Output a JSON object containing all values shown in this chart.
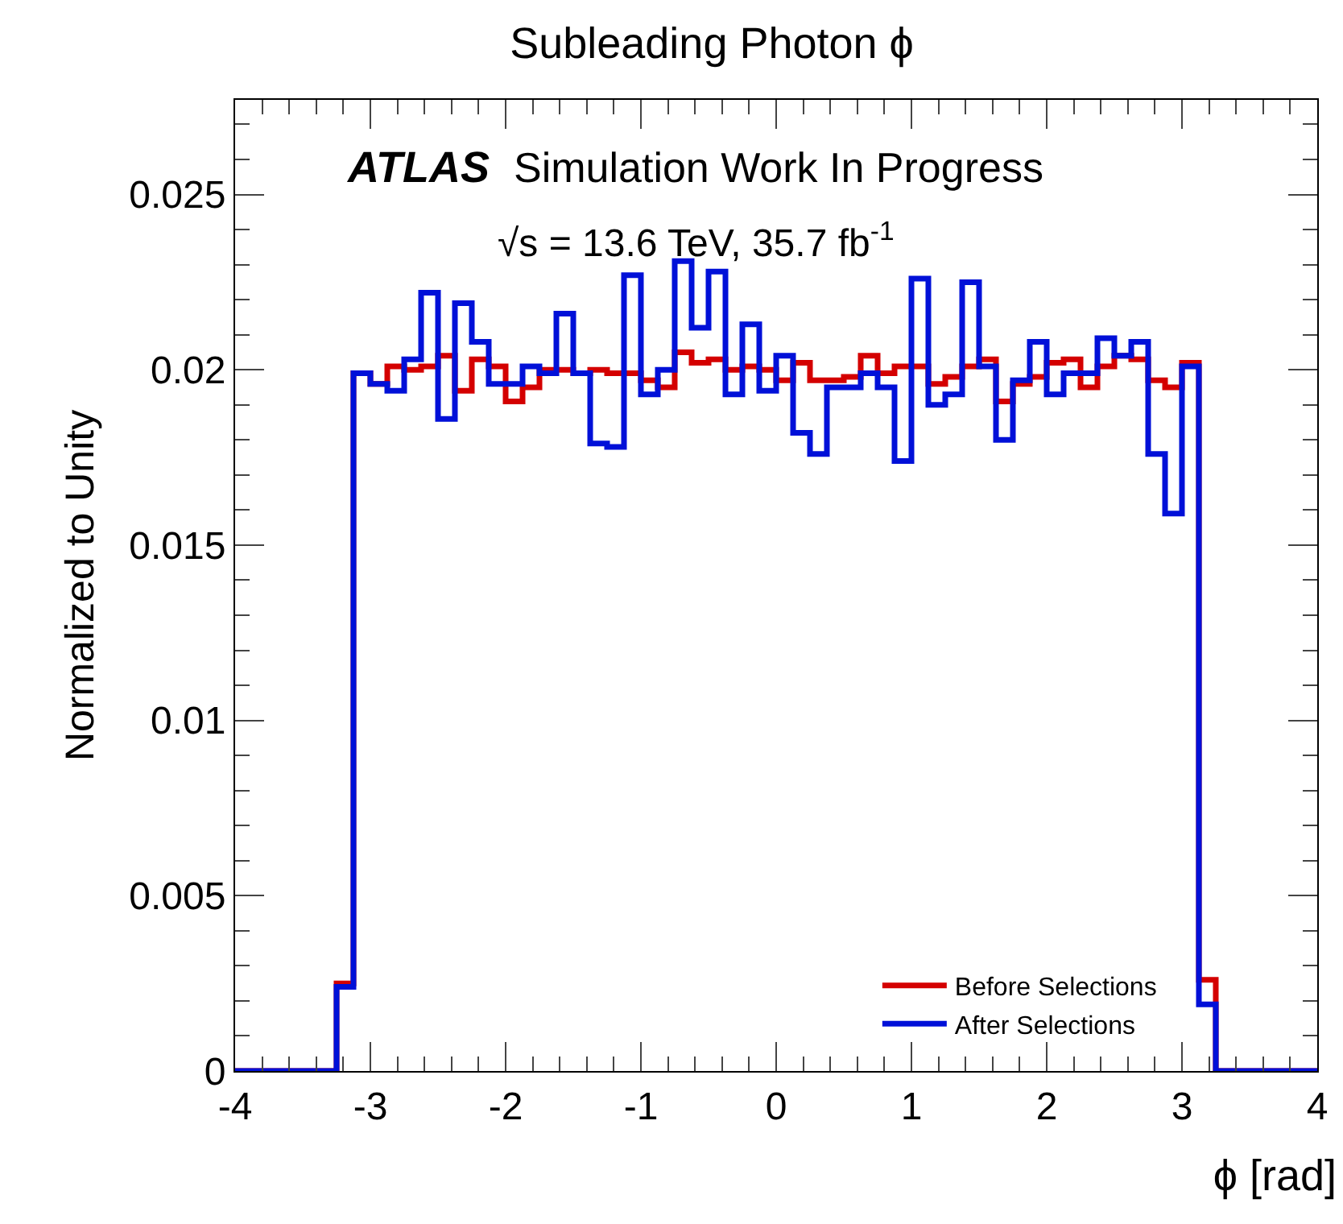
{
  "chart_data": {
    "type": "histogram",
    "title": "Subleading Photon ϕ",
    "xlabel": "ϕ [rad]",
    "ylabel": "Normalized to Unity",
    "annotations": [
      "ATLAS",
      "Simulation Work In Progress",
      "√s = 13.6 TeV, 35.7 fb$^{-1}$"
    ],
    "bins": [
      -4,
      -3.875,
      -3.75,
      -3.625,
      -3.5,
      -3.375,
      -3.25,
      -3.125,
      -3,
      -2.875,
      -2.75,
      -2.625,
      -2.5,
      -2.375,
      -2.25,
      -2.125,
      -2,
      -1.875,
      -1.75,
      -1.625,
      -1.5,
      -1.375,
      -1.25,
      -1.125,
      -1,
      -0.875,
      -0.75,
      -0.625,
      -0.5,
      -0.375,
      -0.25,
      -0.125,
      0,
      0.125,
      0.25,
      0.375,
      0.5,
      0.625,
      0.75,
      0.875,
      1,
      1.125,
      1.25,
      1.375,
      1.5,
      1.625,
      1.75,
      1.875,
      2,
      2.125,
      2.25,
      2.375,
      2.5,
      2.625,
      2.75,
      2.875,
      3,
      3.125,
      3.25,
      3.375,
      3.5,
      3.625,
      3.75,
      3.875,
      4
    ],
    "series": [
      {
        "name": "Before Selections",
        "color": "#d40000",
        "values": [
          0,
          0,
          0,
          0,
          0,
          0,
          0.0025,
          0.0199,
          0.0196,
          0.0201,
          0.02,
          0.0201,
          0.0204,
          0.0194,
          0.0203,
          0.0201,
          0.0191,
          0.0195,
          0.02,
          0.02,
          0.0199,
          0.02,
          0.0199,
          0.0199,
          0.0197,
          0.0195,
          0.0205,
          0.0202,
          0.0203,
          0.02,
          0.0201,
          0.02,
          0.0197,
          0.0202,
          0.0197,
          0.0197,
          0.0198,
          0.0204,
          0.0199,
          0.0201,
          0.0201,
          0.0196,
          0.0198,
          0.0201,
          0.0203,
          0.0191,
          0.0196,
          0.0198,
          0.0202,
          0.0203,
          0.0195,
          0.0201,
          0.0204,
          0.0203,
          0.0197,
          0.0195,
          0.0202,
          0.0026,
          0,
          0,
          0,
          0,
          0,
          0
        ]
      },
      {
        "name": "After Selections",
        "color": "#0010d8",
        "values": [
          0,
          0,
          0,
          0,
          0,
          0,
          0.0024,
          0.0199,
          0.0196,
          0.0194,
          0.0203,
          0.0222,
          0.0186,
          0.0219,
          0.0208,
          0.0196,
          0.0196,
          0.0201,
          0.0199,
          0.0216,
          0.0199,
          0.0179,
          0.0178,
          0.0227,
          0.0193,
          0.02,
          0.0231,
          0.0212,
          0.0228,
          0.0193,
          0.0213,
          0.0194,
          0.0204,
          0.0182,
          0.0176,
          0.0195,
          0.0195,
          0.0199,
          0.0195,
          0.0174,
          0.0226,
          0.019,
          0.0193,
          0.0225,
          0.0201,
          0.018,
          0.0197,
          0.0208,
          0.0193,
          0.0199,
          0.0199,
          0.0209,
          0.0204,
          0.0208,
          0.0176,
          0.0159,
          0.0201,
          0.0019,
          0,
          0,
          0,
          0,
          0,
          0
        ]
      }
    ],
    "xlim": [
      -4,
      4
    ],
    "xticks": [
      -4,
      -3,
      -2,
      -1,
      0,
      1,
      2,
      3,
      4
    ],
    "ylim": [
      0,
      0.0277
    ],
    "yticks": [
      0,
      0.005,
      0.01,
      0.015,
      0.02,
      0.025
    ],
    "legend": "bottom right"
  }
}
